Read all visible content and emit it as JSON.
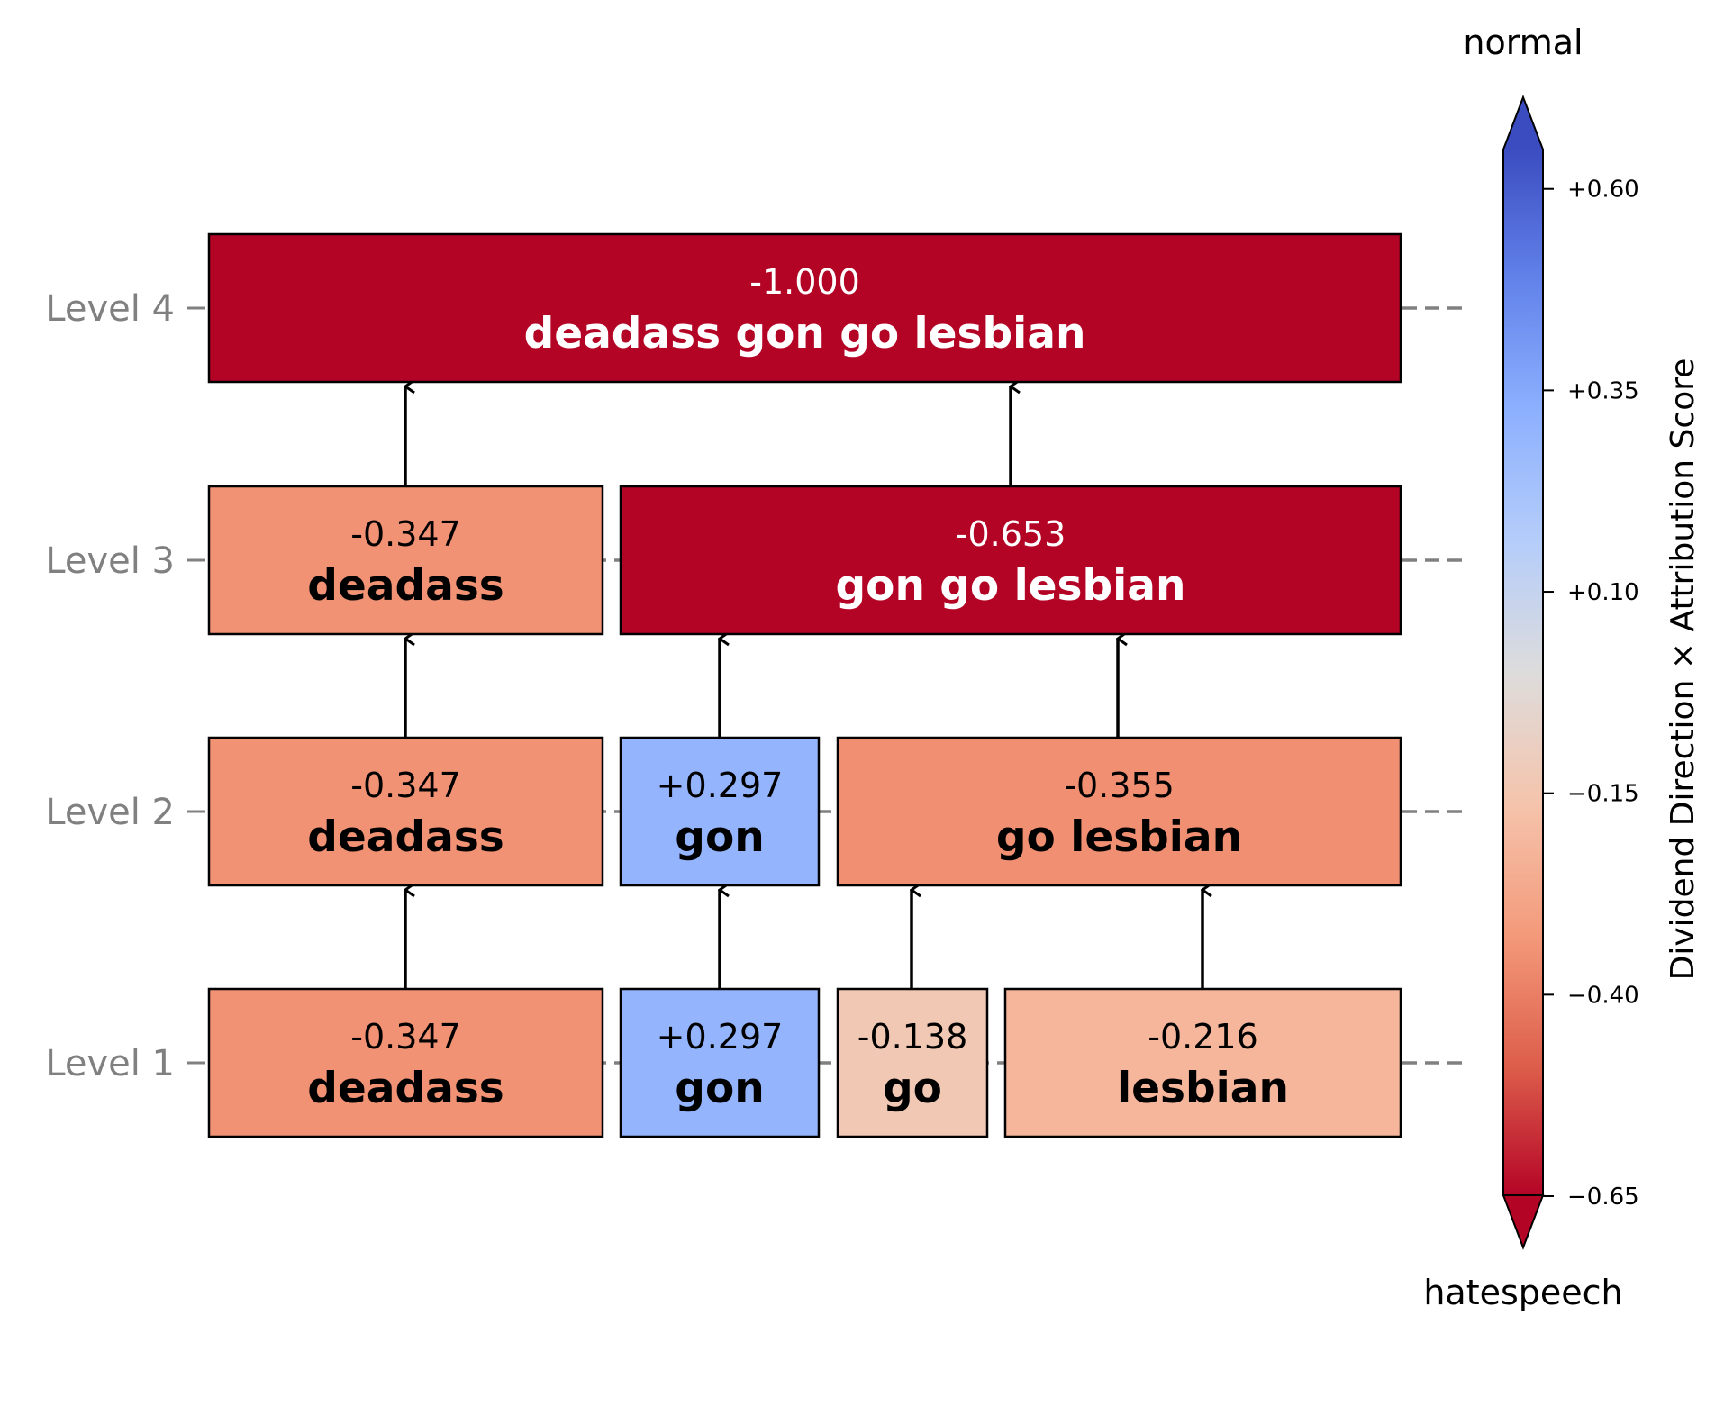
{
  "levels": [
    {
      "label": "Level 1",
      "boxes": [
        {
          "score": "-0.347",
          "text": "deadass",
          "value": -0.347
        },
        {
          "score": "+0.297",
          "text": "gon",
          "value": 0.297
        },
        {
          "score": "-0.138",
          "text": "go",
          "value": -0.138
        },
        {
          "score": "-0.216",
          "text": "lesbian",
          "value": -0.216
        }
      ]
    },
    {
      "label": "Level 2",
      "boxes": [
        {
          "score": "-0.347",
          "text": "deadass",
          "value": -0.347
        },
        {
          "score": "+0.297",
          "text": "gon",
          "value": 0.297
        },
        {
          "score": "-0.355",
          "text": "go lesbian",
          "value": -0.355
        }
      ]
    },
    {
      "label": "Level 3",
      "boxes": [
        {
          "score": "-0.347",
          "text": "deadass",
          "value": -0.347
        },
        {
          "score": "-0.653",
          "text": "gon go lesbian",
          "value": -0.653
        }
      ]
    },
    {
      "label": "Level 4",
      "boxes": [
        {
          "score": "-1.000",
          "text": "deadass gon go lesbian",
          "value": -1.0
        }
      ]
    }
  ],
  "colorbar": {
    "title": "Dividend Direction × Attribution Score",
    "top_label": "normal",
    "bottom_label": "hatespeech",
    "ticks": [
      "+0.60",
      "+0.35",
      "+0.10",
      "−0.15",
      "−0.40",
      "−0.65"
    ],
    "range": [
      -0.65,
      0.65
    ],
    "colors": {
      "min": "#b40426",
      "low": "#f0937a",
      "mid": "#dddcdc",
      "high": "#8db0fe",
      "max": "#3b4cc0"
    }
  }
}
